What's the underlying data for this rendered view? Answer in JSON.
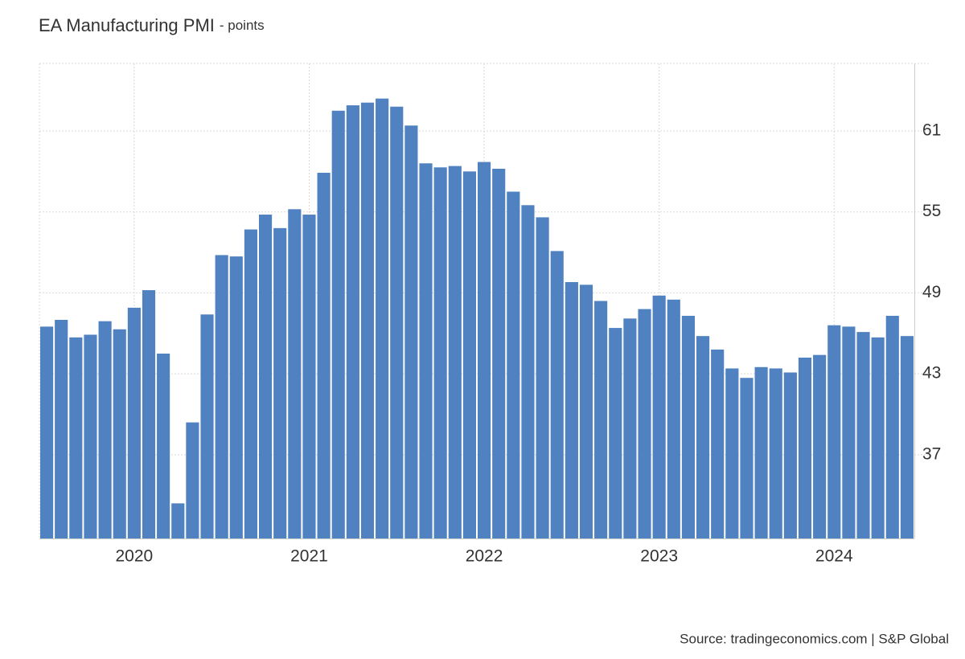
{
  "chart_data": {
    "type": "bar",
    "title": "EA Manufacturing PMI",
    "unit": "- points",
    "source": "Source: tradingeconomics.com | S&P Global",
    "categories": [
      null,
      null,
      null,
      null,
      null,
      null,
      "2020",
      null,
      null,
      null,
      null,
      null,
      null,
      null,
      null,
      null,
      null,
      null,
      "2021",
      null,
      null,
      null,
      null,
      null,
      null,
      null,
      null,
      null,
      null,
      null,
      "2022",
      null,
      null,
      null,
      null,
      null,
      null,
      null,
      null,
      null,
      null,
      null,
      "2023",
      null,
      null,
      null,
      null,
      null,
      null,
      null,
      null,
      null,
      null,
      null,
      "2024",
      null,
      null,
      null,
      null,
      null
    ],
    "values": [
      46.5,
      47.0,
      45.7,
      45.9,
      46.9,
      46.3,
      47.9,
      49.2,
      44.5,
      33.4,
      39.4,
      47.4,
      51.8,
      51.7,
      53.7,
      54.8,
      53.8,
      55.2,
      54.8,
      57.9,
      62.5,
      62.9,
      63.1,
      63.4,
      62.8,
      61.4,
      58.6,
      58.3,
      58.4,
      58.0,
      58.7,
      58.2,
      56.5,
      55.5,
      54.6,
      52.1,
      49.8,
      49.6,
      48.4,
      46.4,
      47.1,
      47.8,
      48.8,
      48.5,
      47.3,
      45.8,
      44.8,
      43.4,
      42.7,
      43.5,
      43.4,
      43.1,
      44.2,
      44.4,
      46.6,
      46.5,
      46.1,
      45.7,
      47.3,
      45.8
    ],
    "color": "#5081c0",
    "ylim": [
      30.8,
      66
    ],
    "yticks": [
      37,
      43,
      49,
      55,
      61
    ],
    "y_axis_side": "right",
    "grid": true
  }
}
